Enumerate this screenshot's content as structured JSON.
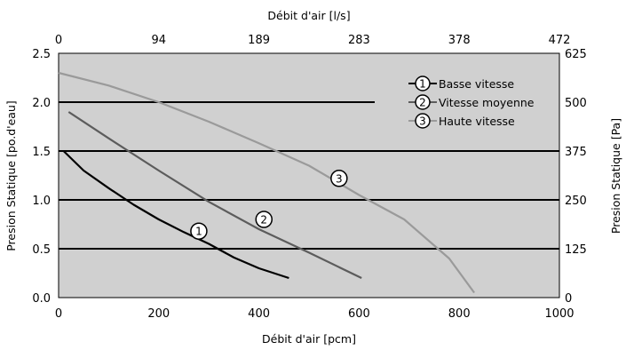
{
  "chart_data": {
    "type": "line",
    "title": "",
    "xlabel": "Débit d'air [pcm]",
    "x2label": "Débit d'air [l/s]",
    "ylabel": "Presion Statique [po.d'eau]",
    "y2label": "Presion Statique [Pa]",
    "xlim": [
      0,
      1000
    ],
    "ylim": [
      0,
      2.5
    ],
    "grid": "horizontal",
    "plot_background": "#d0d0d0",
    "legend_position": "top-right",
    "x_ticks": [
      "0",
      "200",
      "400",
      "600",
      "800",
      "1000"
    ],
    "y_ticks": [
      "0.0",
      "0.5",
      "1.0",
      "1.5",
      "2.0",
      "2.5"
    ],
    "x2_ticks": [
      "0",
      "94",
      "189",
      "283",
      "378",
      "472"
    ],
    "y2_ticks": [
      "0",
      "125",
      "250",
      "375",
      "500",
      "625"
    ],
    "series": [
      {
        "name": "Basse vitesse",
        "marker": "1",
        "color": "#000000",
        "x": [
          10,
          50,
          100,
          150,
          200,
          250,
          300,
          350,
          400,
          460
        ],
        "y": [
          1.5,
          1.3,
          1.12,
          0.95,
          0.8,
          0.67,
          0.55,
          0.41,
          0.3,
          0.2
        ]
      },
      {
        "name": "Vitesse moyenne",
        "marker": "2",
        "color": "#5c5c5c",
        "x": [
          20,
          100,
          200,
          300,
          400,
          500,
          605
        ],
        "y": [
          1.9,
          1.63,
          1.3,
          0.98,
          0.7,
          0.46,
          0.2
        ]
      },
      {
        "name": "Haute vitesse",
        "marker": "3",
        "color": "#9a9a9a",
        "x": [
          0,
          100,
          200,
          300,
          400,
          500,
          600,
          690,
          780,
          830
        ],
        "y": [
          2.3,
          2.17,
          2.0,
          1.8,
          1.58,
          1.35,
          1.05,
          0.8,
          0.4,
          0.05
        ]
      }
    ]
  }
}
